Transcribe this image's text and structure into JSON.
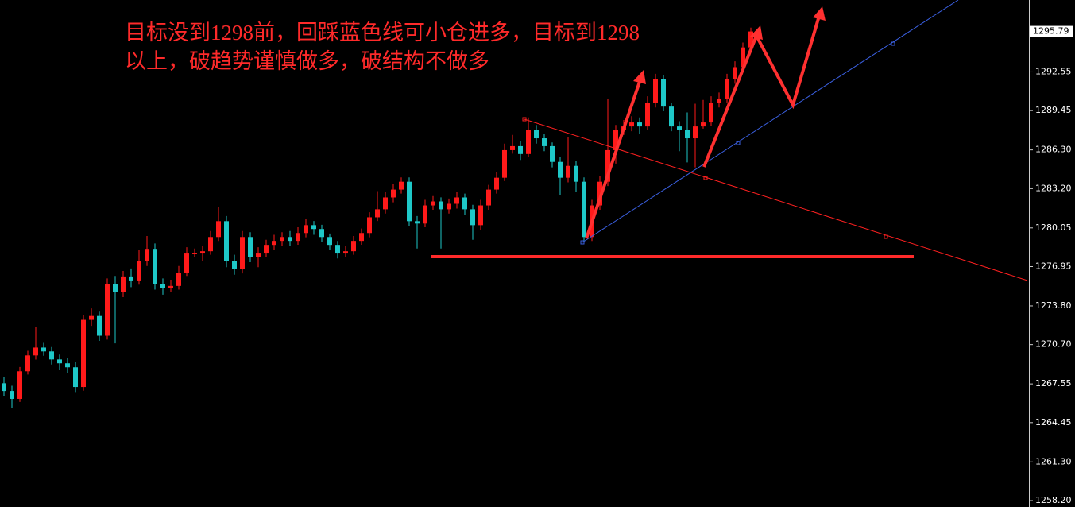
{
  "chart_data": {
    "type": "candlestick",
    "annotation": [
      "目标没到1298前，回踩蓝色线可小仓进多，目标到1298",
      "以上，破趋势谨慎做多，破结构不做多"
    ],
    "up_color": "#ff1a1a",
    "down_color": "#1ec8c8",
    "ylim": [
      1257.69,
      1298.31
    ],
    "yticks": [
      {
        "value": 1258.2,
        "label": "1258.20"
      },
      {
        "value": 1261.3,
        "label": "1261.30"
      },
      1264.45,
      1267.55,
      {
        "value": 1270.7,
        "label": "1270.70"
      },
      {
        "value": 1273.8,
        "label": "1273.80"
      },
      1276.95,
      1280.05,
      {
        "value": 1283.2,
        "label": "1283.20"
      },
      {
        "value": 1286.3,
        "label": "1286.30"
      },
      1289.45,
      1292.55
    ],
    "open": [
      1267.6,
      1266.98,
      1266.35,
      1268.56,
      1269.83,
      1270.46,
      1270.15,
      1269.51,
      1269.2,
      1268.88,
      1267.3,
      1272.68,
      1272.99,
      1271.41,
      1275.53,
      1274.89,
      1276.16,
      1275.84,
      1277.42,
      1278.37,
      1275.53,
      1275.21,
      1275.4,
      1276.47,
      1278.06,
      1278.06,
      1278.18,
      1279.32,
      1280.59,
      1277.42,
      1276.79,
      1279.32,
      1277.74,
      1278.06,
      1278.69,
      1279.01,
      1279.32,
      1279.01,
      1279.64,
      1280.27,
      1279.96,
      1279.32,
      1278.69,
      1278.06,
      1278.18,
      1279.01,
      1279.64,
      1280.9,
      1281.54,
      1282.49,
      1283.12,
      1283.75,
      1280.59,
      1280.4,
      1281.85,
      1282.17,
      1281.54,
      1281.98,
      1282.49,
      1281.54,
      1280.27,
      1281.85,
      1283.12,
      1284.07,
      1286.28,
      1286.6,
      1285.97,
      1287.87,
      1287.23,
      1286.6,
      1285.34,
      1284.07,
      1285.02,
      1283.75,
      1279.32,
      1281.85,
      1283.75,
      1286.28,
      1287.87,
      1288.18,
      1288.5,
      1288.18,
      1290.08,
      1291.98,
      1289.77,
      1288.18,
      1287.87,
      1287.23,
      1288.18,
      1288.5,
      1290.08,
      1290.4,
      1291.98,
      1292.93,
      1294.51
    ],
    "high": [
      1268.1,
      1267.4,
      1268.9,
      1270.2,
      1272.1,
      1270.9,
      1270.5,
      1269.9,
      1269.6,
      1269.3,
      1273.1,
      1273.6,
      1273.4,
      1276.0,
      1276.2,
      1276.6,
      1276.8,
      1278.3,
      1279.4,
      1278.8,
      1276.0,
      1275.9,
      1277.0,
      1278.5,
      1278.4,
      1278.6,
      1279.8,
      1281.7,
      1281.0,
      1277.9,
      1279.8,
      1279.7,
      1278.5,
      1279.1,
      1279.5,
      1279.7,
      1279.8,
      1280.1,
      1280.8,
      1280.6,
      1280.3,
      1279.6,
      1279.0,
      1278.6,
      1279.4,
      1280.0,
      1281.3,
      1283.0,
      1282.9,
      1283.6,
      1284.1,
      1284.1,
      1281.0,
      1282.3,
      1282.6,
      1282.5,
      1282.4,
      1282.9,
      1282.8,
      1281.9,
      1282.3,
      1283.5,
      1284.5,
      1286.8,
      1287.5,
      1287.0,
      1288.9,
      1288.3,
      1287.6,
      1286.9,
      1285.7,
      1287.3,
      1285.4,
      1284.1,
      1282.3,
      1284.2,
      1290.4,
      1288.3,
      1288.7,
      1289.0,
      1288.9,
      1290.6,
      1292.4,
      1292.3,
      1290.1,
      1288.6,
      1289.3,
      1290.0,
      1290.3,
      1290.6,
      1290.9,
      1292.4,
      1293.4,
      1294.9,
      1296.1
    ],
    "low": [
      1266.6,
      1265.6,
      1266.1,
      1268.3,
      1269.5,
      1269.8,
      1269.1,
      1268.7,
      1268.4,
      1266.9,
      1267.0,
      1272.2,
      1271.0,
      1271.1,
      1270.8,
      1274.5,
      1275.3,
      1275.5,
      1277.0,
      1275.1,
      1274.7,
      1274.9,
      1275.1,
      1276.2,
      1277.7,
      1277.4,
      1277.9,
      1279.0,
      1276.9,
      1276.3,
      1276.4,
      1277.3,
      1276.9,
      1277.7,
      1278.3,
      1278.6,
      1278.6,
      1278.7,
      1279.3,
      1279.5,
      1278.9,
      1278.3,
      1277.6,
      1277.7,
      1277.9,
      1278.7,
      1279.3,
      1280.6,
      1281.2,
      1282.1,
      1282.8,
      1280.2,
      1278.4,
      1280.1,
      1281.5,
      1278.4,
      1281.2,
      1281.6,
      1281.1,
      1279.1,
      1279.9,
      1281.5,
      1282.8,
      1283.8,
      1286.0,
      1285.5,
      1285.7,
      1286.8,
      1286.2,
      1284.9,
      1282.7,
      1283.7,
      1282.9,
      1279.0,
      1279.0,
      1281.5,
      1283.4,
      1285.2,
      1287.5,
      1287.8,
      1287.6,
      1287.9,
      1289.7,
      1289.4,
      1287.8,
      1286.2,
      1285.3,
      1284.9,
      1288.0,
      1288.2,
      1289.7,
      1290.1,
      1291.6,
      1292.6,
      1294.2
    ],
    "close": [
      1266.98,
      1266.35,
      1268.56,
      1269.83,
      1270.46,
      1270.15,
      1269.51,
      1269.2,
      1268.88,
      1267.3,
      1272.68,
      1272.99,
      1271.41,
      1275.53,
      1274.89,
      1276.16,
      1275.84,
      1277.42,
      1278.37,
      1275.53,
      1275.21,
      1275.4,
      1276.47,
      1278.06,
      1278.06,
      1278.18,
      1279.32,
      1280.59,
      1277.42,
      1276.79,
      1279.32,
      1277.74,
      1278.06,
      1278.69,
      1279.01,
      1279.32,
      1279.01,
      1279.64,
      1280.27,
      1279.96,
      1279.32,
      1278.69,
      1278.06,
      1278.18,
      1279.01,
      1279.64,
      1280.9,
      1281.54,
      1282.49,
      1283.12,
      1283.75,
      1280.59,
      1280.4,
      1281.85,
      1282.17,
      1281.54,
      1281.98,
      1282.49,
      1281.54,
      1280.27,
      1281.85,
      1283.12,
      1284.07,
      1286.28,
      1286.6,
      1285.97,
      1287.87,
      1287.23,
      1286.6,
      1285.34,
      1284.07,
      1285.02,
      1283.75,
      1279.32,
      1281.85,
      1283.75,
      1286.28,
      1287.87,
      1288.18,
      1288.5,
      1288.18,
      1290.08,
      1291.98,
      1289.77,
      1288.18,
      1287.87,
      1287.23,
      1288.18,
      1288.5,
      1290.08,
      1290.4,
      1291.98,
      1292.93,
      1294.51,
      1295.79
    ]
  }
}
